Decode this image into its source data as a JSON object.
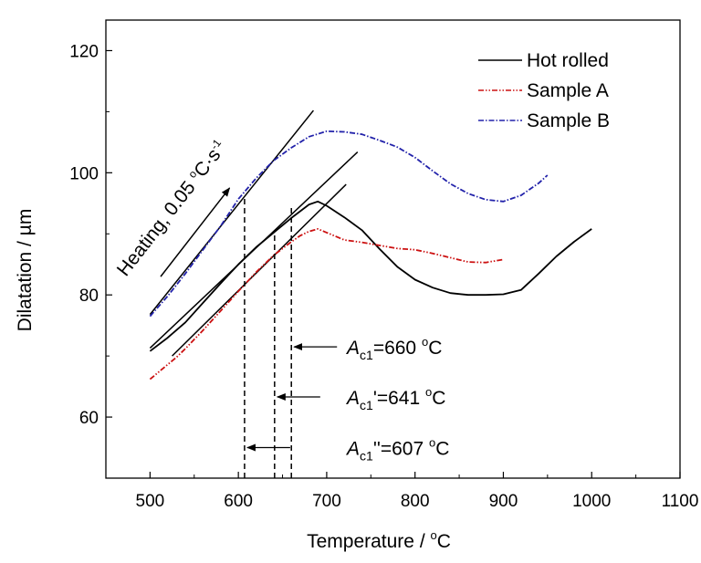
{
  "chart_data": {
    "type": "line",
    "title": "",
    "xlabel": "Temperature / °C",
    "xlabel_prefix": "Temperature / ",
    "xlabel_unit_sup": "o",
    "xlabel_unit": "C",
    "ylabel": "Dilatation / µm",
    "xlim": [
      450,
      1100
    ],
    "ylim": [
      50,
      125
    ],
    "xticks": [
      500,
      600,
      700,
      800,
      900,
      1000,
      1100
    ],
    "yticks": [
      60,
      80,
      100,
      120
    ],
    "xtick_labels": [
      "500",
      "600",
      "700",
      "800",
      "900",
      "1000",
      "1100"
    ],
    "ytick_labels": [
      "60",
      "80",
      "100",
      "120"
    ],
    "grid": false,
    "legend_position": "top-right",
    "series": [
      {
        "name": "Hot rolled",
        "color": "#000000",
        "style": "solid",
        "x": [
          500,
          520,
          540,
          560,
          580,
          600,
          620,
          640,
          660,
          680,
          690,
          700,
          720,
          740,
          760,
          780,
          800,
          820,
          840,
          860,
          880,
          900,
          920,
          940,
          960,
          980,
          1000
        ],
        "y": [
          70.8,
          73,
          75.5,
          78.7,
          81.9,
          85,
          87.8,
          90.2,
          92.6,
          94.8,
          95.3,
          94.6,
          92.7,
          90.6,
          87.5,
          84.6,
          82.5,
          81.2,
          80.3,
          80,
          80,
          80.1,
          80.8,
          83.5,
          86.3,
          88.7,
          90.8
        ]
      },
      {
        "name": "Sample A",
        "color": "#cc1111",
        "style": "dash-dot-dot",
        "x": [
          500,
          510,
          520,
          530,
          540,
          560,
          580,
          600,
          620,
          640,
          660,
          670,
          680,
          690,
          700,
          720,
          740,
          760,
          780,
          800,
          820,
          840,
          860,
          880,
          900
        ],
        "y": [
          66.2,
          67.4,
          68.6,
          69.8,
          71.2,
          74.2,
          77.4,
          80.6,
          83.7,
          86.5,
          88.7,
          89.7,
          90.4,
          90.8,
          90.2,
          89,
          88.6,
          88.1,
          87.6,
          87.4,
          86.8,
          86.1,
          85.4,
          85.3,
          85.8
        ]
      },
      {
        "name": "Sample B",
        "color": "#2222aa",
        "style": "dash-dot",
        "x": [
          500,
          520,
          540,
          560,
          580,
          600,
          620,
          640,
          660,
          680,
          700,
          720,
          740,
          760,
          780,
          800,
          820,
          840,
          860,
          880,
          900,
          920,
          940,
          950
        ],
        "y": [
          76.5,
          79.8,
          83.5,
          87.4,
          91.3,
          95.7,
          99.1,
          102,
          104.1,
          105.9,
          106.8,
          106.7,
          106.3,
          105.3,
          104.2,
          102.5,
          100.3,
          98.2,
          96.6,
          95.6,
          95.3,
          96.3,
          98.3,
          99.6
        ]
      }
    ],
    "tangent_lines": [
      {
        "x": [
          500,
          685
        ],
        "y": [
          76.8,
          110.2
        ]
      },
      {
        "x": [
          500,
          735
        ],
        "y": [
          71.3,
          103.4
        ]
      },
      {
        "x": [
          525,
          722
        ],
        "y": [
          70,
          98.1
        ]
      }
    ],
    "transformation_markers": [
      {
        "x": 660,
        "label_main": "A",
        "label_sub": "c1",
        "label_prime": "",
        "label_value": "=660",
        "label_sup": "o",
        "label_unit": "C",
        "arrow_y": 71.5,
        "label_y": 71.5
      },
      {
        "x": 641,
        "label_main": "A",
        "label_sub": "c1",
        "label_prime": "'",
        "label_value": "=641",
        "label_sup": "o",
        "label_unit": "C",
        "arrow_y": 63.3,
        "label_y": 63.3
      },
      {
        "x": 607,
        "label_main": "A",
        "label_sub": "c1",
        "label_prime": "''",
        "label_value": "=607",
        "label_sup": "o",
        "label_unit": "C",
        "arrow_y": 55,
        "label_y": 55
      }
    ],
    "heating_annotation": {
      "text": "Heating, 0.05 ",
      "sup1": "o",
      "unit": "C·s",
      "sup2": "-1",
      "arrow_from": [
        512,
        83
      ],
      "arrow_to": [
        590,
        97.5
      ]
    }
  }
}
